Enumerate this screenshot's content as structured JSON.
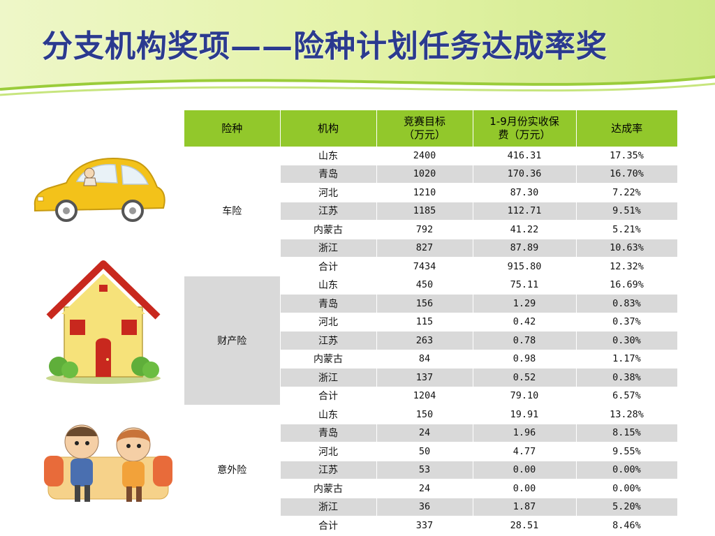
{
  "title": "分支机构奖项——险种计划任务达成率奖",
  "colors": {
    "header_bg": "#92c82b",
    "title_color": "#2b3a8f",
    "row_shade": "#d9d9d9"
  },
  "table": {
    "headers": [
      "险种",
      "机构",
      "竞赛目标（万元）",
      "1-9月份实收保费（万元）",
      "达成率"
    ],
    "header_lines": {
      "target": [
        "竞赛目标",
        "（万元）"
      ],
      "premium": [
        "1-9月份实收保",
        "费（万元）"
      ]
    },
    "groups": [
      {
        "name": "车险",
        "rows": [
          [
            "山东",
            "2400",
            "416.31",
            "17.35%"
          ],
          [
            "青岛",
            "1020",
            "170.36",
            "16.70%"
          ],
          [
            "河北",
            "1210",
            "87.30",
            "7.22%"
          ],
          [
            "江苏",
            "1185",
            "112.71",
            "9.51%"
          ],
          [
            "内蒙古",
            "792",
            "41.22",
            "5.21%"
          ],
          [
            "浙江",
            "827",
            "87.89",
            "10.63%"
          ],
          [
            "合计",
            "7434",
            "915.80",
            "12.32%"
          ]
        ]
      },
      {
        "name": "财产险",
        "rows": [
          [
            "山东",
            "450",
            "75.11",
            "16.69%"
          ],
          [
            "青岛",
            "156",
            "1.29",
            "0.83%"
          ],
          [
            "河北",
            "115",
            "0.42",
            "0.37%"
          ],
          [
            "江苏",
            "263",
            "0.78",
            "0.30%"
          ],
          [
            "内蒙古",
            "84",
            "0.98",
            "1.17%"
          ],
          [
            "浙江",
            "137",
            "0.52",
            "0.38%"
          ],
          [
            "合计",
            "1204",
            "79.10",
            "6.57%"
          ]
        ]
      },
      {
        "name": "意外险",
        "rows": [
          [
            "山东",
            "150",
            "19.91",
            "13.28%"
          ],
          [
            "青岛",
            "24",
            "1.96",
            "8.15%"
          ],
          [
            "河北",
            "50",
            "4.77",
            "9.55%"
          ],
          [
            "江苏",
            "53",
            "0.00",
            "0.00%"
          ],
          [
            "内蒙古",
            "24",
            "0.00",
            "0.00%"
          ],
          [
            "浙江",
            "36",
            "1.87",
            "5.20%"
          ],
          [
            "合计",
            "337",
            "28.51",
            "8.46%"
          ]
        ]
      }
    ]
  },
  "illustrations": [
    "car-illustration",
    "house-illustration",
    "couple-illustration"
  ]
}
